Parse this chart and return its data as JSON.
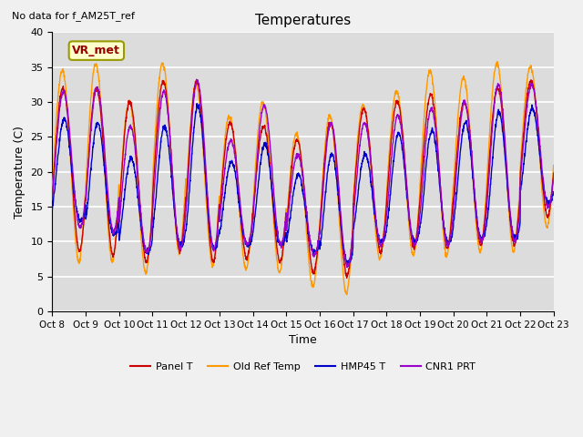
{
  "title": "Temperatures",
  "xlabel": "Time",
  "ylabel": "Temperature (C)",
  "ylim": [
    0,
    40
  ],
  "annotation_text": "No data for f_AM25T_ref",
  "vr_met_label": "VR_met",
  "legend_labels": [
    "Panel T",
    "Old Ref Temp",
    "HMP45 T",
    "CNR1 PRT"
  ],
  "line_colors": [
    "#cc0000",
    "#ff9900",
    "#0000cc",
    "#9900cc"
  ],
  "bg_color": "#dcdcdc",
  "fig_bg_color": "#f0f0f0",
  "n_days": 15,
  "pts_per_day": 144,
  "day_peaks_orange": [
    34.5,
    35.5,
    30.0,
    35.5,
    32.5,
    28.0,
    30.0,
    25.5,
    28.0,
    29.5,
    31.5,
    34.5,
    33.5,
    35.5,
    35.0
  ],
  "day_mins_orange": [
    7.0,
    7.0,
    5.5,
    8.5,
    6.5,
    6.0,
    5.5,
    3.5,
    2.5,
    7.5,
    8.0,
    8.0,
    8.5,
    8.5,
    12.0
  ],
  "day_peaks_red": [
    32.0,
    32.0,
    30.0,
    33.0,
    33.0,
    27.0,
    26.5,
    24.5,
    27.0,
    29.0,
    30.0,
    31.0,
    30.0,
    32.0,
    33.0
  ],
  "day_mins_red": [
    8.5,
    8.0,
    7.0,
    8.5,
    7.0,
    7.5,
    7.0,
    5.5,
    5.0,
    8.5,
    9.0,
    9.0,
    9.5,
    9.5,
    13.5
  ],
  "day_peaks_blue": [
    27.5,
    27.0,
    22.0,
    26.5,
    29.5,
    21.5,
    24.0,
    19.5,
    22.5,
    22.5,
    25.5,
    26.0,
    27.0,
    28.5,
    29.0
  ],
  "day_mins_blue": [
    13.0,
    11.0,
    8.5,
    9.5,
    9.0,
    9.5,
    9.5,
    8.5,
    7.0,
    10.0,
    10.0,
    10.0,
    10.5,
    10.5,
    15.5
  ],
  "day_peaks_purple": [
    31.5,
    32.0,
    26.5,
    31.5,
    33.0,
    24.5,
    29.5,
    22.5,
    27.0,
    27.0,
    28.0,
    29.0,
    30.0,
    32.5,
    32.5
  ],
  "day_mins_purple": [
    12.0,
    11.5,
    8.5,
    9.0,
    9.0,
    9.5,
    9.5,
    8.0,
    6.5,
    9.5,
    9.5,
    9.5,
    10.0,
    10.0,
    15.0
  ]
}
